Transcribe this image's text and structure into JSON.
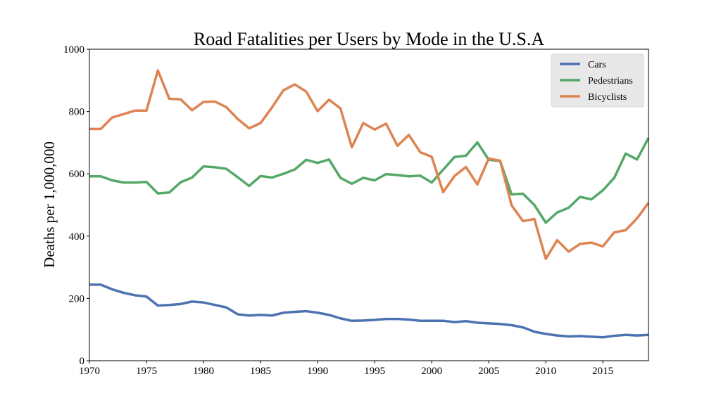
{
  "chart_data": {
    "type": "line",
    "title": "Road Fatalities per Users by Mode in the U.S.A",
    "xlabel": "",
    "ylabel": "Deaths per 1,000,000",
    "xlim": [
      1970,
      2019
    ],
    "ylim": [
      0,
      1000
    ],
    "x_ticks": [
      1970,
      1975,
      1980,
      1985,
      1990,
      1995,
      2000,
      2005,
      2010,
      2015
    ],
    "y_ticks": [
      0,
      200,
      400,
      600,
      800,
      1000
    ],
    "grid": false,
    "legend_position": "top-right",
    "x": [
      1970,
      1971,
      1972,
      1973,
      1974,
      1975,
      1976,
      1977,
      1978,
      1979,
      1980,
      1981,
      1982,
      1983,
      1984,
      1985,
      1986,
      1987,
      1988,
      1989,
      1990,
      1991,
      1992,
      1993,
      1994,
      1995,
      1996,
      1997,
      1998,
      1999,
      2000,
      2001,
      2002,
      2003,
      2004,
      2005,
      2006,
      2007,
      2008,
      2009,
      2010,
      2011,
      2012,
      2013,
      2014,
      2015,
      2016,
      2017,
      2018,
      2019
    ],
    "series": [
      {
        "name": "Cars",
        "color": "#4c72b0",
        "values": [
          244,
          244,
          229,
          218,
          210,
          206,
          177,
          179,
          182,
          190,
          187,
          179,
          171,
          149,
          145,
          147,
          145,
          154,
          157,
          159,
          154,
          147,
          136,
          128,
          129,
          131,
          134,
          134,
          132,
          128,
          128,
          128,
          124,
          127,
          122,
          120,
          118,
          114,
          107,
          93,
          86,
          81,
          78,
          79,
          77,
          75,
          80,
          83,
          81,
          83
        ]
      },
      {
        "name": "Pedestrians",
        "color": "#55a868",
        "values": [
          592,
          592,
          579,
          572,
          572,
          574,
          537,
          540,
          573,
          588,
          624,
          621,
          616,
          589,
          561,
          593,
          588,
          600,
          614,
          645,
          635,
          646,
          587,
          568,
          587,
          579,
          599,
          596,
          592,
          594,
          572,
          613,
          654,
          658,
          701,
          645,
          641,
          534,
          536,
          500,
          443,
          476,
          491,
          526,
          518,
          547,
          587,
          665,
          646,
          715
        ]
      },
      {
        "name": "Bicyclists",
        "color": "#dd8452",
        "values": [
          744,
          744,
          781,
          792,
          803,
          803,
          932,
          841,
          839,
          804,
          831,
          832,
          814,
          776,
          746,
          763,
          813,
          868,
          887,
          864,
          801,
          838,
          810,
          685,
          763,
          742,
          761,
          690,
          725,
          669,
          655,
          541,
          593,
          622,
          566,
          649,
          642,
          499,
          448,
          455,
          327,
          387,
          350,
          375,
          379,
          367,
          412,
          419,
          457,
          507
        ]
      }
    ]
  }
}
